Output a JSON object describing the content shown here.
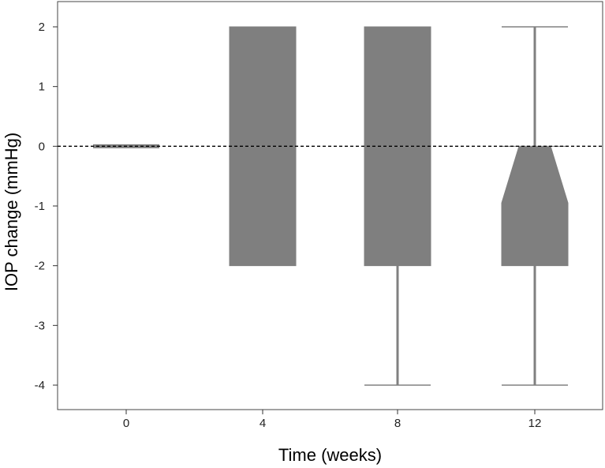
{
  "chart_data": {
    "type": "box",
    "notched": true,
    "title": "",
    "xlabel": "Time (weeks)",
    "ylabel": "IOP change (mmHg)",
    "ylim": [
      -4.45,
      2.35
    ],
    "yticks": [
      2,
      1,
      0,
      -1,
      -2,
      -3,
      -4
    ],
    "categories": [
      "0",
      "4",
      "8",
      "12"
    ],
    "reference_line": {
      "y": 0,
      "style": "dashed"
    },
    "grid": false,
    "legend": "none",
    "boxes": [
      {
        "category": "0",
        "whisker_low": 0,
        "q1": 0,
        "median": 0,
        "q3": 0,
        "whisker_high": 0,
        "notch_low": 0,
        "notch_high": 0
      },
      {
        "category": "4",
        "whisker_low": -2,
        "q1": -2,
        "median": 0,
        "q3": 2,
        "whisker_high": 2,
        "notch_low": 0,
        "notch_high": 0
      },
      {
        "category": "8",
        "whisker_low": -4,
        "q1": -2,
        "median": 0,
        "q3": 2,
        "whisker_high": 2,
        "notch_low": 0,
        "notch_high": 0
      },
      {
        "category": "12",
        "whisker_low": -4,
        "q1": -2,
        "median": 0,
        "q3": 0,
        "whisker_high": 2,
        "notch_low": -0.95,
        "notch_high": 0
      }
    ],
    "colors": {
      "box": "#7f7f7f",
      "whisker": "#808080",
      "refline": "#000000",
      "axis": "#333333"
    }
  }
}
